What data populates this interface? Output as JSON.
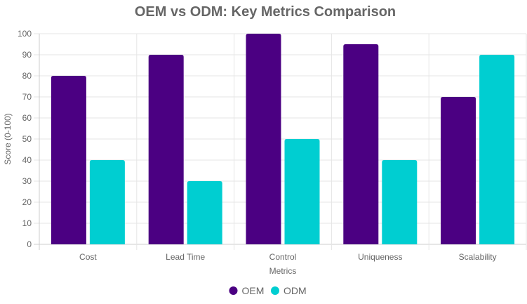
{
  "chart_data": {
    "type": "bar",
    "title": "OEM vs ODM: Key Metrics Comparison",
    "xlabel": "Metrics",
    "ylabel": "Score (0-100)",
    "categories": [
      "Cost",
      "Lead Time",
      "Control",
      "Uniqueness",
      "Scalability"
    ],
    "ylim": [
      0,
      100
    ],
    "yticks": [
      0,
      10,
      20,
      30,
      40,
      50,
      60,
      70,
      80,
      90,
      100
    ],
    "series": [
      {
        "name": "OEM",
        "color": "#4b0082",
        "values": [
          80,
          90,
          100,
          95,
          70
        ]
      },
      {
        "name": "ODM",
        "color": "#00ced1",
        "values": [
          40,
          30,
          50,
          40,
          90
        ]
      }
    ],
    "grid": true,
    "legend_position": "bottom"
  }
}
